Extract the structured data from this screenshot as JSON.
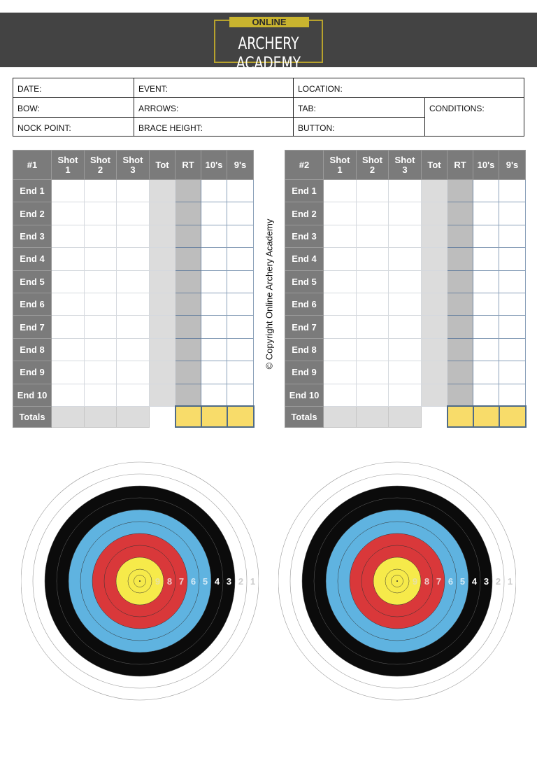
{
  "logo": {
    "top": "ONLINE",
    "main": "ARCHERY ACADEMY"
  },
  "info": {
    "date": "DATE:",
    "event": "EVENT:",
    "location": "LOCATION:",
    "bow": "BOW:",
    "arrows": "ARROWS:",
    "tab": "TAB:",
    "conditions": "CONDITIONS:",
    "nock_point": "NOCK POINT:",
    "brace_height": "BRACE HEIGHT:",
    "button": "BUTTON:"
  },
  "tables": [
    {
      "id": "#1",
      "columns": [
        "Shot 1",
        "Shot 2",
        "Shot 3",
        "Tot",
        "RT",
        "10's",
        "9's"
      ]
    },
    {
      "id": "#2",
      "columns": [
        "Shot 1",
        "Shot 2",
        "Shot 3",
        "Tot",
        "RT",
        "10's",
        "9's"
      ]
    }
  ],
  "rows": [
    "End 1",
    "End 2",
    "End 3",
    "End 4",
    "End 5",
    "End 6",
    "End 7",
    "End 8",
    "End 9",
    "End 10"
  ],
  "totals_label": "Totals",
  "copyright": "© Copyright Online Archery Academy",
  "target": {
    "ring_labels": [
      "9",
      "8",
      "7",
      "6",
      "5",
      "4",
      "3",
      "2",
      "1"
    ],
    "colors": {
      "yellow": "#f6ea4a",
      "red": "#d9383a",
      "blue": "#5fb3e0",
      "black": "#0b0b0b",
      "white": "#ffffff"
    }
  }
}
